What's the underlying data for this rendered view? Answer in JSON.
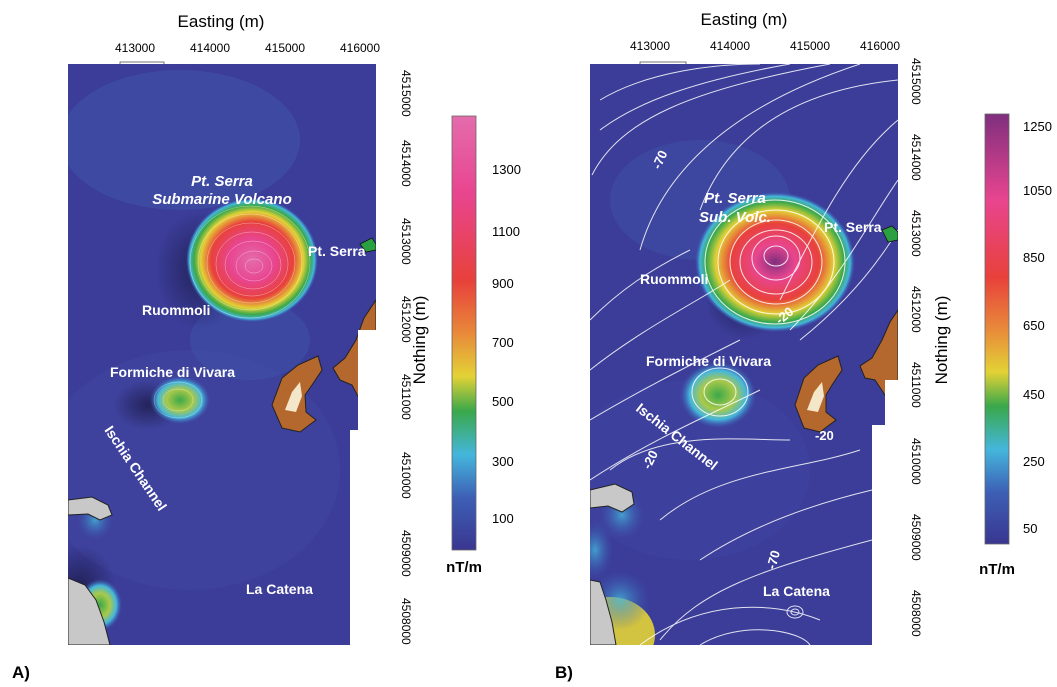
{
  "panels": [
    {
      "id": "A",
      "letter": "A)",
      "x_title": "Easting (m)",
      "y_title": "Nothing (m)",
      "x_ticks": [
        "413000",
        "414000",
        "415000",
        "416000"
      ],
      "y_ticks": [
        "4515000",
        "4514000",
        "4513000",
        "4512000",
        "4511000",
        "4510000",
        "4509000",
        "4508000"
      ],
      "labels": {
        "volcano": [
          "Pt. Serra",
          "Submarine Volcano"
        ],
        "pt_serra": "Pt. Serra",
        "ruommoli": "Ruommoli",
        "formiche": "Formiche di Vivara",
        "ischia": "Ischia Channel",
        "catena": "La Catena"
      },
      "colorbar": {
        "ticks": [
          "1300",
          "1100",
          "900",
          "700",
          "500",
          "300",
          "100"
        ],
        "unit": "nT/m"
      }
    },
    {
      "id": "B",
      "letter": "B)",
      "x_title": "Easting (m)",
      "y_title": "Nothing (m)",
      "x_ticks": [
        "413000",
        "414000",
        "415000",
        "416000"
      ],
      "y_ticks": [
        "4515000",
        "4514000",
        "4513000",
        "4512000",
        "4511000",
        "4510000",
        "4509000",
        "4508000"
      ],
      "labels": {
        "volcano": [
          "Pt. Serra",
          "Sub. Volc."
        ],
        "pt_serra": "Pt. Serra",
        "ruommoli": "Ruommoli",
        "formiche": "Formiche di Vivara",
        "ischia": "Ischia Channel",
        "catena": "La Catena",
        "contour_labels": [
          "-70",
          "-20",
          "-20",
          "-20",
          "-70"
        ]
      },
      "colorbar": {
        "ticks": [
          "1250",
          "1050",
          "850",
          "650",
          "450",
          "250",
          "50"
        ],
        "unit": "nT/m"
      }
    }
  ],
  "colors": {
    "background": "#ffffff",
    "map_base": "#3b3d99",
    "land": "#c8c8c8",
    "island": "#b5682e",
    "colormap": [
      "#3a3690",
      "#3d5fb5",
      "#44b6dc",
      "#3aa84a",
      "#e3d236",
      "#e8893a",
      "#e8413b",
      "#e8458f",
      "#e46cad"
    ],
    "colormap_b": [
      "#3a3690",
      "#3d5fb5",
      "#44b6dc",
      "#3aa84a",
      "#e3d236",
      "#e8893a",
      "#e8413b",
      "#e8458f",
      "#7f2f7e"
    ]
  },
  "icons": [
    "scale-bar-icon",
    "land-mass-icon",
    "island-icon"
  ]
}
